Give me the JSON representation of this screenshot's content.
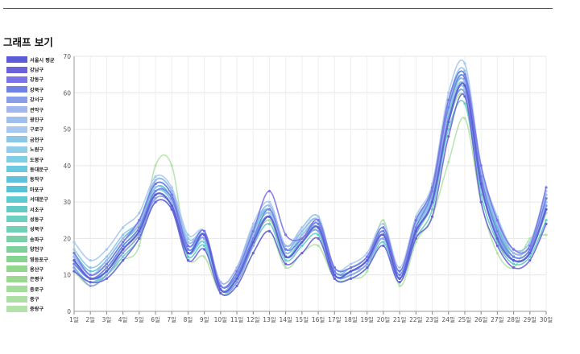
{
  "page": {
    "title": "그래프 보기"
  },
  "chart_data": {
    "type": "line",
    "title": "",
    "xlabel": "",
    "ylabel": "",
    "ylim": [
      0,
      70
    ],
    "yticks": [
      0,
      10,
      20,
      30,
      40,
      50,
      60,
      70
    ],
    "grid": true,
    "legend_position": "left",
    "categories": [
      "1일",
      "2일",
      "3일",
      "4일",
      "5일",
      "6일",
      "7일",
      "8일",
      "9일",
      "10일",
      "11일",
      "12일",
      "13일",
      "14일",
      "15일",
      "16일",
      "17일",
      "18일",
      "19일",
      "20일",
      "21일",
      "22일",
      "23일",
      "24일",
      "25일",
      "26일",
      "27일",
      "28일",
      "29일",
      "30일"
    ],
    "series": [
      {
        "name": "서울시 평균",
        "color": "#5b5bd6",
        "values": [
          14,
          9,
          11,
          17,
          22,
          32,
          29,
          16,
          21,
          6,
          9,
          19,
          26,
          15,
          19,
          23,
          10,
          11,
          14,
          21,
          9,
          22,
          30,
          52,
          62,
          35,
          20,
          14,
          16,
          28
        ]
      },
      {
        "name": "강남구",
        "color": "#6a63d8",
        "values": [
          11,
          8,
          9,
          14,
          20,
          30,
          28,
          14,
          17,
          5,
          7,
          16,
          22,
          13,
          16,
          20,
          9,
          9,
          12,
          18,
          8,
          20,
          26,
          48,
          59,
          30,
          18,
          12,
          14,
          24
        ]
      },
      {
        "name": "강동구",
        "color": "#7a74e6",
        "values": [
          16,
          10,
          13,
          19,
          25,
          35,
          32,
          18,
          22,
          7,
          11,
          22,
          33,
          21,
          20,
          25,
          12,
          12,
          15,
          23,
          11,
          25,
          34,
          58,
          65,
          40,
          25,
          17,
          18,
          34
        ]
      },
      {
        "name": "강북구",
        "color": "#6f82e3",
        "values": [
          13,
          9,
          12,
          18,
          23,
          33,
          31,
          17,
          21,
          7,
          10,
          20,
          28,
          17,
          20,
          24,
          11,
          11,
          14,
          22,
          10,
          23,
          33,
          56,
          64,
          37,
          22,
          15,
          17,
          31
        ]
      },
      {
        "name": "강서구",
        "color": "#8a9ee8",
        "values": [
          12,
          7,
          10,
          16,
          21,
          31,
          29,
          16,
          20,
          6,
          8,
          18,
          26,
          15,
          19,
          22,
          10,
          10,
          13,
          20,
          9,
          21,
          31,
          53,
          60,
          34,
          21,
          14,
          16,
          29
        ]
      },
      {
        "name": "관악구",
        "color": "#a3b7ef",
        "values": [
          15,
          10,
          14,
          20,
          24,
          36,
          33,
          19,
          22,
          8,
          12,
          23,
          29,
          18,
          22,
          25,
          12,
          12,
          15,
          23,
          11,
          25,
          33,
          57,
          63,
          38,
          24,
          16,
          18,
          32
        ]
      },
      {
        "name": "광진구",
        "color": "#9fc0ee",
        "values": [
          14,
          9,
          12,
          17,
          22,
          34,
          30,
          17,
          20,
          6,
          10,
          21,
          27,
          16,
          21,
          23,
          10,
          11,
          13,
          21,
          9,
          23,
          31,
          55,
          61,
          36,
          22,
          15,
          17,
          30
        ]
      },
      {
        "name": "구로구",
        "color": "#a7c9f0",
        "values": [
          19,
          14,
          17,
          23,
          27,
          37,
          34,
          21,
          22,
          8,
          12,
          24,
          30,
          18,
          23,
          26,
          12,
          13,
          16,
          24,
          12,
          26,
          35,
          60,
          68,
          40,
          26,
          17,
          19,
          33
        ]
      },
      {
        "name": "금천구",
        "color": "#8cc7e6",
        "values": [
          17,
          12,
          15,
          21,
          25,
          36,
          33,
          20,
          21,
          7,
          11,
          23,
          28,
          17,
          22,
          25,
          11,
          12,
          15,
          23,
          11,
          24,
          34,
          58,
          66,
          39,
          25,
          16,
          18,
          31
        ]
      },
      {
        "name": "노원구",
        "color": "#91cde8",
        "values": [
          13,
          9,
          12,
          18,
          23,
          33,
          30,
          17,
          20,
          6,
          10,
          21,
          27,
          16,
          21,
          24,
          10,
          11,
          14,
          21,
          10,
          23,
          32,
          55,
          62,
          36,
          22,
          15,
          17,
          29
        ]
      },
      {
        "name": "도봉구",
        "color": "#7ecfe5",
        "values": [
          12,
          8,
          11,
          17,
          22,
          32,
          29,
          16,
          19,
          6,
          9,
          20,
          26,
          15,
          20,
          23,
          10,
          10,
          13,
          20,
          9,
          22,
          31,
          53,
          60,
          35,
          21,
          14,
          16,
          28
        ]
      },
      {
        "name": "동대문구",
        "color": "#6cc8df",
        "values": [
          15,
          10,
          13,
          19,
          24,
          35,
          32,
          18,
          21,
          7,
          11,
          22,
          28,
          17,
          22,
          25,
          11,
          12,
          15,
          22,
          10,
          24,
          33,
          57,
          64,
          38,
          24,
          16,
          18,
          31
        ]
      },
      {
        "name": "동작구",
        "color": "#5fc1dc",
        "values": [
          14,
          9,
          12,
          18,
          23,
          34,
          31,
          17,
          20,
          6,
          10,
          21,
          27,
          16,
          21,
          24,
          10,
          11,
          14,
          21,
          10,
          23,
          32,
          56,
          63,
          37,
          23,
          15,
          17,
          30
        ]
      },
      {
        "name": "마포구",
        "color": "#58c2d6",
        "values": [
          16,
          11,
          14,
          20,
          25,
          36,
          33,
          19,
          22,
          8,
          12,
          23,
          29,
          18,
          23,
          26,
          12,
          12,
          15,
          23,
          11,
          25,
          34,
          58,
          65,
          39,
          25,
          17,
          19,
          32
        ]
      },
      {
        "name": "서대문구",
        "color": "#5ecbd0",
        "values": [
          13,
          9,
          11,
          17,
          22,
          33,
          30,
          16,
          19,
          6,
          9,
          20,
          26,
          15,
          20,
          23,
          10,
          10,
          13,
          20,
          9,
          22,
          31,
          54,
          61,
          35,
          22,
          14,
          16,
          29
        ]
      },
      {
        "name": "서초구",
        "color": "#63cbc5",
        "values": [
          11,
          8,
          10,
          15,
          20,
          30,
          28,
          15,
          18,
          5,
          8,
          18,
          24,
          14,
          18,
          21,
          9,
          9,
          12,
          19,
          8,
          20,
          28,
          50,
          57,
          32,
          19,
          13,
          15,
          25
        ]
      },
      {
        "name": "성동구",
        "color": "#6ccfbf",
        "values": [
          14,
          9,
          12,
          18,
          23,
          34,
          31,
          17,
          20,
          7,
          10,
          21,
          27,
          16,
          21,
          24,
          11,
          11,
          14,
          21,
          10,
          23,
          32,
          55,
          62,
          36,
          23,
          15,
          17,
          30
        ]
      },
      {
        "name": "성북구",
        "color": "#72d0b6",
        "values": [
          15,
          10,
          13,
          19,
          24,
          35,
          32,
          18,
          21,
          7,
          11,
          22,
          28,
          17,
          22,
          25,
          11,
          12,
          15,
          22,
          10,
          24,
          33,
          57,
          64,
          38,
          24,
          16,
          18,
          31
        ]
      },
      {
        "name": "송파구",
        "color": "#7bd0a8",
        "values": [
          12,
          8,
          11,
          17,
          22,
          32,
          29,
          16,
          19,
          6,
          9,
          20,
          26,
          15,
          20,
          22,
          10,
          10,
          13,
          20,
          9,
          22,
          30,
          53,
          60,
          34,
          21,
          14,
          16,
          28
        ]
      },
      {
        "name": "양천구",
        "color": "#7fd19b",
        "values": [
          13,
          9,
          12,
          18,
          23,
          33,
          30,
          17,
          20,
          6,
          10,
          21,
          27,
          16,
          21,
          23,
          10,
          11,
          14,
          21,
          10,
          23,
          31,
          54,
          61,
          35,
          22,
          15,
          17,
          29
        ]
      },
      {
        "name": "영등포구",
        "color": "#86d48f",
        "values": [
          15,
          10,
          13,
          19,
          24,
          35,
          32,
          18,
          21,
          7,
          11,
          22,
          28,
          17,
          22,
          25,
          11,
          12,
          15,
          22,
          10,
          24,
          33,
          56,
          63,
          37,
          23,
          16,
          18,
          30
        ]
      },
      {
        "name": "용산구",
        "color": "#92d78e",
        "values": [
          14,
          9,
          12,
          17,
          22,
          33,
          30,
          17,
          20,
          6,
          10,
          21,
          27,
          16,
          21,
          24,
          10,
          11,
          14,
          21,
          10,
          23,
          32,
          55,
          62,
          36,
          22,
          15,
          17,
          29
        ]
      },
      {
        "name": "은평구",
        "color": "#9bd993",
        "values": [
          13,
          9,
          11,
          17,
          22,
          32,
          29,
          16,
          19,
          6,
          9,
          20,
          26,
          15,
          20,
          23,
          10,
          10,
          13,
          20,
          9,
          22,
          31,
          53,
          60,
          35,
          21,
          14,
          16,
          28
        ]
      },
      {
        "name": "종로구",
        "color": "#a4dc9b",
        "values": [
          12,
          8,
          11,
          16,
          21,
          31,
          29,
          16,
          19,
          6,
          9,
          19,
          25,
          15,
          19,
          22,
          10,
          10,
          13,
          20,
          9,
          21,
          30,
          52,
          59,
          34,
          21,
          14,
          16,
          27
        ]
      },
      {
        "name": "중구",
        "color": "#acdfa3",
        "values": [
          13,
          9,
          12,
          17,
          23,
          34,
          31,
          17,
          20,
          7,
          10,
          21,
          27,
          16,
          21,
          24,
          11,
          11,
          14,
          21,
          10,
          23,
          32,
          55,
          62,
          36,
          22,
          15,
          17,
          29
        ]
      },
      {
        "name": "중랑구",
        "color": "#b3e2ab",
        "values": [
          11,
          7,
          10,
          14,
          18,
          40,
          40,
          15,
          15,
          5,
          8,
          16,
          22,
          12,
          16,
          18,
          9,
          9,
          11,
          25,
          7,
          19,
          26,
          41,
          53,
          30,
          16,
          12,
          20,
          21
        ]
      }
    ]
  }
}
